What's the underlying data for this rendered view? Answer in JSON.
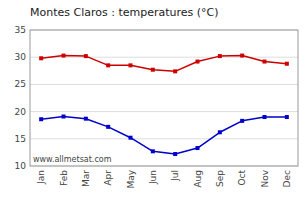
{
  "chart_data": {
    "type": "line",
    "title": "Montes Claros : temperatures (°C)",
    "categories": [
      "Jan",
      "Feb",
      "Mar",
      "Apr",
      "May",
      "Jun",
      "Jul",
      "Aug",
      "Sep",
      "Oct",
      "Nov",
      "Dec"
    ],
    "series": [
      {
        "color": "#cc0000",
        "marker": "square",
        "values": [
          29.8,
          30.3,
          30.2,
          28.5,
          28.5,
          27.7,
          27.4,
          29.2,
          30.2,
          30.3,
          29.2,
          28.8
        ]
      },
      {
        "color": "#0000cc",
        "marker": "square",
        "values": [
          18.6,
          19.1,
          18.7,
          17.2,
          15.2,
          12.7,
          12.2,
          13.3,
          16.2,
          18.3,
          19.0,
          19.0
        ]
      }
    ],
    "ylim": [
      10,
      35
    ],
    "yticks": [
      10,
      15,
      20,
      25,
      30,
      35
    ],
    "grid": true,
    "annotations": [
      "www.allmetsat.com"
    ]
  }
}
